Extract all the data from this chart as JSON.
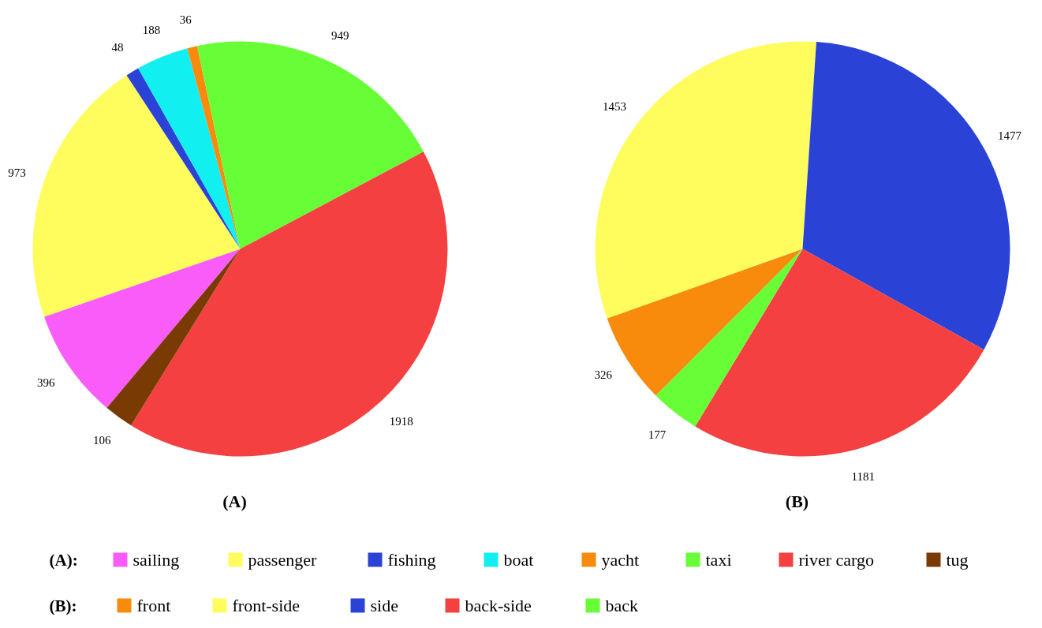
{
  "chart_data": [
    {
      "type": "pie",
      "title": "(A)",
      "legend_title": "(A):",
      "legend": "bottom",
      "data_labels": true,
      "categories": [
        "sailing",
        "passenger",
        "fishing",
        "boat",
        "yacht",
        "taxi",
        "river cargo",
        "tug"
      ],
      "values": [
        396,
        973,
        48,
        188,
        36,
        949,
        1918,
        106
      ],
      "colors": [
        "#f95cf9",
        "#fefd5d",
        "#2a43d6",
        "#12eff0",
        "#f88b0c",
        "#68fe37",
        "#f44040",
        "#7a3a03"
      ]
    },
    {
      "type": "pie",
      "title": "(B)",
      "legend_title": "(B):",
      "legend": "bottom",
      "data_labels": true,
      "categories": [
        "front",
        "front-side",
        "side",
        "back-side",
        "back"
      ],
      "values": [
        326,
        1453,
        1477,
        1181,
        177
      ],
      "colors": [
        "#f88b0c",
        "#fefd5d",
        "#2a43d6",
        "#f44040",
        "#68fe37"
      ]
    }
  ]
}
